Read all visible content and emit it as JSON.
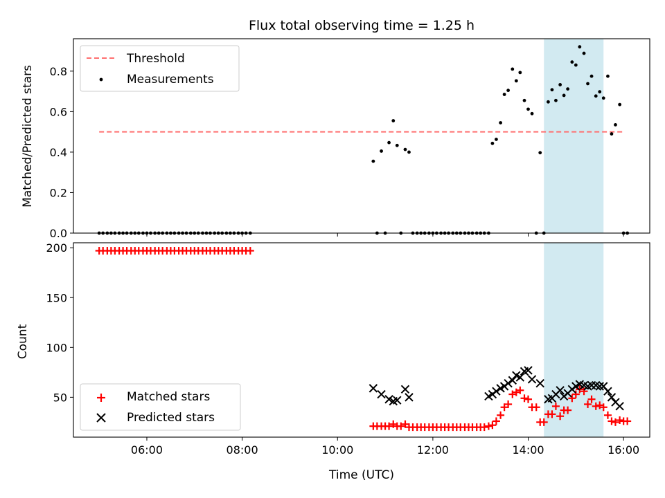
{
  "figure": {
    "title": "Flux total observing time = 1.25 h",
    "xlabel": "Time (UTC)",
    "xticks": [
      {
        "h": 6,
        "label": "06:00"
      },
      {
        "h": 8,
        "label": "08:00"
      },
      {
        "h": 10,
        "label": "10:00"
      },
      {
        "h": 12,
        "label": "12:00"
      },
      {
        "h": 14,
        "label": "14:00"
      },
      {
        "h": 16,
        "label": "16:00"
      }
    ],
    "xlim": [
      4.46,
      16.55
    ],
    "shaded_span": [
      14.33,
      15.58
    ],
    "colors": {
      "threshold": "#ff6f6f",
      "span": "#add8e6",
      "matched": "#ff0000",
      "predicted": "#000000",
      "measurement": "#000000"
    }
  },
  "chart_data": [
    {
      "type": "scatter",
      "ylabel": "Matched/Predicted stars",
      "ylim": [
        0,
        0.96
      ],
      "yticks": [
        {
          "v": 0.0,
          "label": "0.0"
        },
        {
          "v": 0.2,
          "label": "0.2"
        },
        {
          "v": 0.4,
          "label": "0.4"
        },
        {
          "v": 0.6,
          "label": "0.6"
        },
        {
          "v": 0.8,
          "label": "0.8"
        }
      ],
      "threshold": {
        "name": "Threshold",
        "y": 0.5,
        "x": [
          5.0,
          16.0
        ]
      },
      "series": [
        {
          "name": "Measurements",
          "points": [
            [
              5.0,
              0
            ],
            [
              5.08,
              0
            ],
            [
              5.17,
              0
            ],
            [
              5.25,
              0
            ],
            [
              5.33,
              0
            ],
            [
              5.42,
              0
            ],
            [
              5.5,
              0
            ],
            [
              5.58,
              0
            ],
            [
              5.67,
              0
            ],
            [
              5.75,
              0
            ],
            [
              5.83,
              0
            ],
            [
              5.92,
              0
            ],
            [
              6.0,
              0
            ],
            [
              6.08,
              0
            ],
            [
              6.17,
              0
            ],
            [
              6.25,
              0
            ],
            [
              6.33,
              0
            ],
            [
              6.42,
              0
            ],
            [
              6.5,
              0
            ],
            [
              6.58,
              0
            ],
            [
              6.67,
              0
            ],
            [
              6.75,
              0
            ],
            [
              6.83,
              0
            ],
            [
              6.92,
              0
            ],
            [
              7.0,
              0
            ],
            [
              7.08,
              0
            ],
            [
              7.17,
              0
            ],
            [
              7.25,
              0
            ],
            [
              7.33,
              0
            ],
            [
              7.42,
              0
            ],
            [
              7.5,
              0
            ],
            [
              7.58,
              0
            ],
            [
              7.67,
              0
            ],
            [
              7.75,
              0
            ],
            [
              7.83,
              0
            ],
            [
              7.92,
              0
            ],
            [
              8.0,
              0
            ],
            [
              8.08,
              0
            ],
            [
              8.17,
              0
            ],
            [
              10.75,
              0.355
            ],
            [
              10.83,
              0
            ],
            [
              10.92,
              0.405
            ],
            [
              11.0,
              0
            ],
            [
              11.08,
              0.447
            ],
            [
              11.17,
              0.555
            ],
            [
              11.25,
              0.433
            ],
            [
              11.33,
              0
            ],
            [
              11.42,
              0.413
            ],
            [
              11.5,
              0.4
            ],
            [
              11.58,
              0
            ],
            [
              11.67,
              0
            ],
            [
              11.75,
              0
            ],
            [
              11.83,
              0
            ],
            [
              11.92,
              0
            ],
            [
              12.0,
              0
            ],
            [
              12.08,
              0
            ],
            [
              12.17,
              0
            ],
            [
              12.25,
              0
            ],
            [
              12.33,
              0
            ],
            [
              12.42,
              0
            ],
            [
              12.5,
              0
            ],
            [
              12.58,
              0
            ],
            [
              12.67,
              0
            ],
            [
              12.75,
              0
            ],
            [
              12.83,
              0
            ],
            [
              12.92,
              0
            ],
            [
              13.0,
              0
            ],
            [
              13.08,
              0
            ],
            [
              13.17,
              0
            ],
            [
              13.25,
              0.443
            ],
            [
              13.33,
              0.463
            ],
            [
              13.42,
              0.545
            ],
            [
              13.5,
              0.685
            ],
            [
              13.58,
              0.705
            ],
            [
              13.67,
              0.81
            ],
            [
              13.75,
              0.752
            ],
            [
              13.83,
              0.793
            ],
            [
              13.92,
              0.655
            ],
            [
              14.0,
              0.612
            ],
            [
              14.08,
              0.59
            ],
            [
              14.17,
              0
            ],
            [
              14.25,
              0.397
            ],
            [
              14.33,
              0
            ],
            [
              14.42,
              0.648
            ],
            [
              14.5,
              0.708
            ],
            [
              14.58,
              0.655
            ],
            [
              14.67,
              0.733
            ],
            [
              14.75,
              0.68
            ],
            [
              14.83,
              0.712
            ],
            [
              14.92,
              0.845
            ],
            [
              15.0,
              0.83
            ],
            [
              15.08,
              0.92
            ],
            [
              15.17,
              0.888
            ],
            [
              15.25,
              0.738
            ],
            [
              15.33,
              0.775
            ],
            [
              15.42,
              0.677
            ],
            [
              15.5,
              0.698
            ],
            [
              15.58,
              0.667
            ],
            [
              15.67,
              0.775
            ],
            [
              15.75,
              0.49
            ],
            [
              15.83,
              0.535
            ],
            [
              15.92,
              0.635
            ],
            [
              16.0,
              0
            ],
            [
              16.08,
              0
            ]
          ]
        }
      ],
      "legend": {
        "placement": "top-left",
        "entries": [
          "Threshold",
          "Measurements"
        ]
      }
    },
    {
      "type": "scatter",
      "ylabel": "Count",
      "ylim": [
        10,
        205
      ],
      "yticks": [
        {
          "v": 50,
          "label": "50"
        },
        {
          "v": 100,
          "label": "100"
        },
        {
          "v": 150,
          "label": "150"
        },
        {
          "v": 200,
          "label": "200"
        }
      ],
      "series": [
        {
          "name": "Matched stars",
          "marker": "plus",
          "points": [
            [
              5.0,
              197
            ],
            [
              5.08,
              197
            ],
            [
              5.17,
              197
            ],
            [
              5.25,
              197
            ],
            [
              5.33,
              197
            ],
            [
              5.42,
              197
            ],
            [
              5.5,
              197
            ],
            [
              5.58,
              197
            ],
            [
              5.67,
              197
            ],
            [
              5.75,
              197
            ],
            [
              5.83,
              197
            ],
            [
              5.92,
              197
            ],
            [
              6.0,
              197
            ],
            [
              6.08,
              197
            ],
            [
              6.17,
              197
            ],
            [
              6.25,
              197
            ],
            [
              6.33,
              197
            ],
            [
              6.42,
              197
            ],
            [
              6.5,
              197
            ],
            [
              6.58,
              197
            ],
            [
              6.67,
              197
            ],
            [
              6.75,
              197
            ],
            [
              6.83,
              197
            ],
            [
              6.92,
              197
            ],
            [
              7.0,
              197
            ],
            [
              7.08,
              197
            ],
            [
              7.17,
              197
            ],
            [
              7.25,
              197
            ],
            [
              7.33,
              197
            ],
            [
              7.42,
              197
            ],
            [
              7.5,
              197
            ],
            [
              7.58,
              197
            ],
            [
              7.67,
              197
            ],
            [
              7.75,
              197
            ],
            [
              7.83,
              197
            ],
            [
              7.92,
              197
            ],
            [
              8.0,
              197
            ],
            [
              8.08,
              197
            ],
            [
              8.17,
              197
            ],
            [
              10.75,
              21
            ],
            [
              10.83,
              21
            ],
            [
              10.92,
              21
            ],
            [
              11.0,
              21
            ],
            [
              11.08,
              21
            ],
            [
              11.17,
              23
            ],
            [
              11.25,
              21
            ],
            [
              11.33,
              21
            ],
            [
              11.42,
              23
            ],
            [
              11.5,
              20
            ],
            [
              11.58,
              20
            ],
            [
              11.67,
              20
            ],
            [
              11.75,
              20
            ],
            [
              11.83,
              20
            ],
            [
              11.92,
              20
            ],
            [
              12.0,
              20
            ],
            [
              12.08,
              20
            ],
            [
              12.17,
              20
            ],
            [
              12.25,
              20
            ],
            [
              12.33,
              20
            ],
            [
              12.42,
              20
            ],
            [
              12.5,
              20
            ],
            [
              12.58,
              20
            ],
            [
              12.67,
              20
            ],
            [
              12.75,
              20
            ],
            [
              12.83,
              20
            ],
            [
              12.92,
              20
            ],
            [
              13.0,
              20
            ],
            [
              13.08,
              20
            ],
            [
              13.17,
              21
            ],
            [
              13.25,
              22
            ],
            [
              13.33,
              26
            ],
            [
              13.42,
              32
            ],
            [
              13.5,
              40
            ],
            [
              13.58,
              43
            ],
            [
              13.67,
              53
            ],
            [
              13.75,
              55
            ],
            [
              13.83,
              57
            ],
            [
              13.92,
              49
            ],
            [
              14.0,
              48
            ],
            [
              14.08,
              40
            ],
            [
              14.17,
              40
            ],
            [
              14.25,
              25
            ],
            [
              14.33,
              25
            ],
            [
              14.42,
              33
            ],
            [
              14.5,
              33
            ],
            [
              14.58,
              41
            ],
            [
              14.67,
              31
            ],
            [
              14.75,
              37
            ],
            [
              14.83,
              37
            ],
            [
              14.92,
              49
            ],
            [
              15.0,
              53
            ],
            [
              15.08,
              58
            ],
            [
              15.17,
              56
            ],
            [
              15.25,
              43
            ],
            [
              15.33,
              48
            ],
            [
              15.42,
              41
            ],
            [
              15.5,
              42
            ],
            [
              15.58,
              40
            ],
            [
              15.67,
              32
            ],
            [
              15.75,
              26
            ],
            [
              15.83,
              25
            ],
            [
              15.92,
              27
            ],
            [
              16.0,
              26
            ],
            [
              16.08,
              26
            ]
          ]
        },
        {
          "name": "Predicted stars",
          "marker": "x",
          "points": [
            [
              10.75,
              59
            ],
            [
              10.92,
              53
            ],
            [
              11.08,
              48
            ],
            [
              11.17,
              46
            ],
            [
              11.25,
              47
            ],
            [
              11.42,
              58
            ],
            [
              11.5,
              50
            ],
            [
              13.17,
              51
            ],
            [
              13.25,
              53
            ],
            [
              13.33,
              56
            ],
            [
              13.42,
              59
            ],
            [
              13.5,
              61
            ],
            [
              13.58,
              64
            ],
            [
              13.67,
              67
            ],
            [
              13.75,
              72
            ],
            [
              13.83,
              70
            ],
            [
              13.92,
              76
            ],
            [
              14.0,
              77
            ],
            [
              14.08,
              68
            ],
            [
              14.25,
              64
            ],
            [
              14.42,
              48
            ],
            [
              14.5,
              49
            ],
            [
              14.58,
              53
            ],
            [
              14.67,
              57
            ],
            [
              14.75,
              51
            ],
            [
              14.83,
              54
            ],
            [
              14.92,
              58
            ],
            [
              15.0,
              61
            ],
            [
              15.08,
              63
            ],
            [
              15.17,
              62
            ],
            [
              15.25,
              61
            ],
            [
              15.33,
              62
            ],
            [
              15.42,
              62
            ],
            [
              15.5,
              61
            ],
            [
              15.58,
              61
            ],
            [
              15.67,
              56
            ],
            [
              15.75,
              50
            ],
            [
              15.83,
              45
            ],
            [
              15.92,
              41
            ]
          ]
        }
      ],
      "legend": {
        "placement": "bottom-left",
        "entries": [
          "Matched stars",
          "Predicted stars"
        ]
      }
    }
  ]
}
